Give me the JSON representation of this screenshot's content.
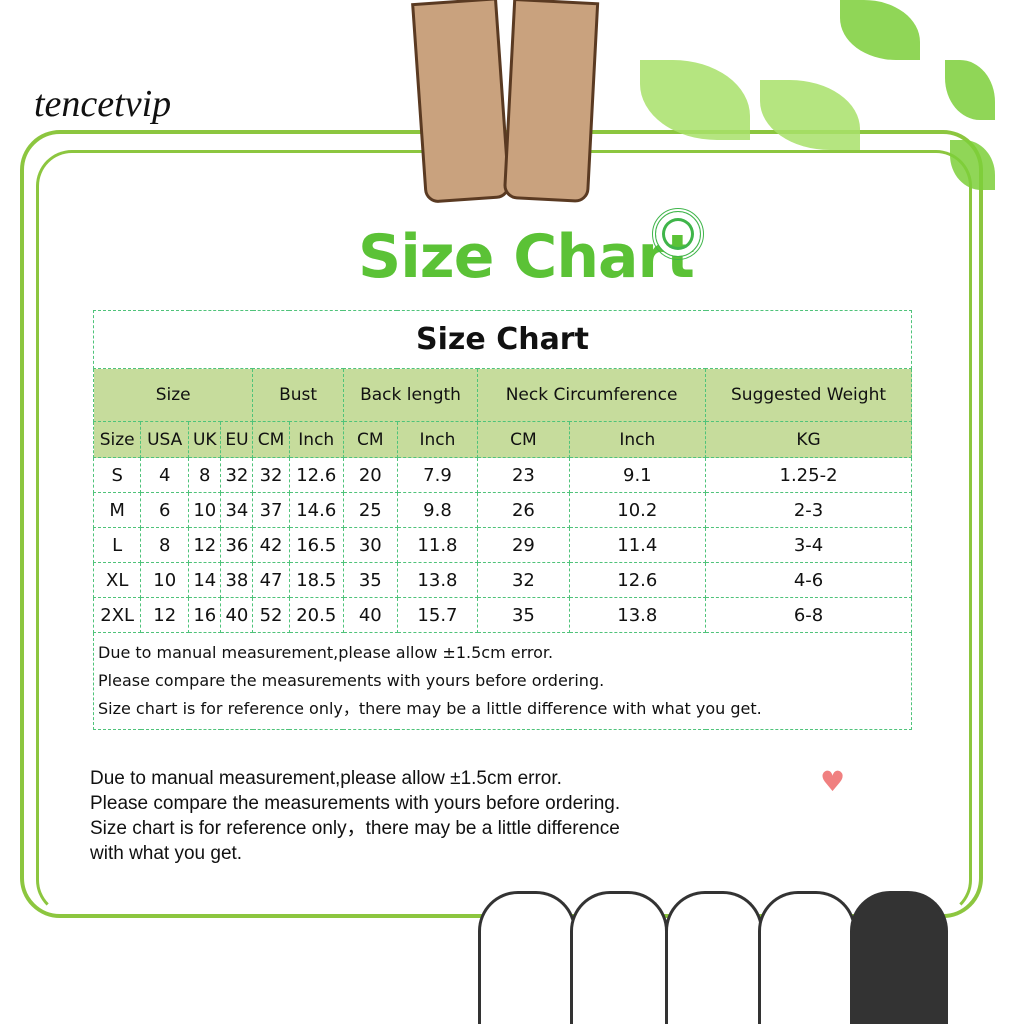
{
  "brand": "tencetvip",
  "banner_title": "Size Chart",
  "table": {
    "title": "Size Chart",
    "group_headers": [
      "Size",
      "Bust",
      "Back length",
      "Neck Circumference",
      "Suggested Weight"
    ],
    "sub_headers": [
      "Size",
      "USA",
      "UK",
      "EU",
      "CM",
      "Inch",
      "CM",
      "Inch",
      "CM",
      "Inch",
      "KG"
    ],
    "rows": [
      [
        "S",
        "4",
        "8",
        "32",
        "32",
        "12.6",
        "20",
        "7.9",
        "23",
        "9.1",
        "1.25-2"
      ],
      [
        "M",
        "6",
        "10",
        "34",
        "37",
        "14.6",
        "25",
        "9.8",
        "26",
        "10.2",
        "2-3"
      ],
      [
        "L",
        "8",
        "12",
        "36",
        "42",
        "16.5",
        "30",
        "11.8",
        "29",
        "11.4",
        "3-4"
      ],
      [
        "XL",
        "10",
        "14",
        "38",
        "47",
        "18.5",
        "35",
        "13.8",
        "32",
        "12.6",
        "4-6"
      ],
      [
        "2XL",
        "12",
        "16",
        "40",
        "52",
        "20.5",
        "40",
        "15.7",
        "35",
        "13.8",
        "6-8"
      ]
    ],
    "notes": [
      "Due to manual measurement,please allow ±1.5cm error.",
      "Please compare the measurements with yours before ordering.",
      "Size chart is for reference only，there may be a little difference with what you get."
    ]
  },
  "bottom_notes": [
    "Due to manual measurement,please allow ±1.5cm error.",
    "Please compare the measurements with yours before ordering.",
    "Size chart is for reference only，there may be a little difference",
    "with what you get."
  ],
  "colors": {
    "accent": "#5bc236",
    "header_bg": "#c6dc9c",
    "frame": "#8cc63f"
  }
}
